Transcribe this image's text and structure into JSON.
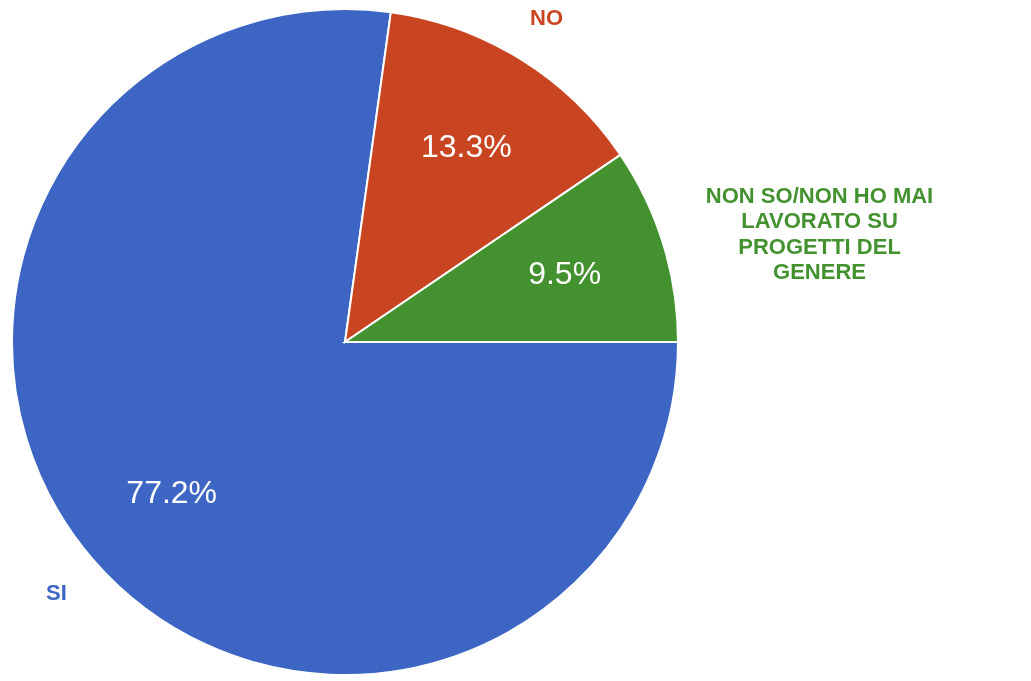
{
  "chart_data": {
    "type": "pie",
    "categories": [
      "SI",
      "NO",
      "NON SO/NON HO MAI LAVORATO SU PROGETTI DEL GENERE"
    ],
    "values": [
      77.2,
      13.3,
      9.5
    ],
    "colors": [
      "#3c65c4",
      "#c94522",
      "#43922f"
    ],
    "value_labels": [
      "77.2%",
      "13.3%",
      "9.5%"
    ]
  }
}
